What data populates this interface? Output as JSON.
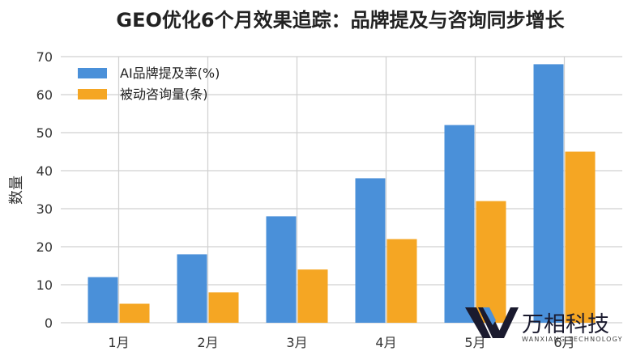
{
  "chart_data": {
    "type": "bar",
    "title": "GEO优化6个月效果追踪：品牌提及与咨询同步增长",
    "xlabel": "",
    "ylabel": "数量",
    "categories": [
      "1月",
      "2月",
      "3月",
      "4月",
      "5月",
      "6月"
    ],
    "series": [
      {
        "name": "AI品牌提及率(%)",
        "values": [
          12,
          18,
          28,
          38,
          52,
          68
        ],
        "color": "#4a90d9"
      },
      {
        "name": "被动咨询量(条)",
        "values": [
          5,
          8,
          14,
          22,
          32,
          45
        ],
        "color": "#f5a623"
      }
    ],
    "ylim": [
      0,
      70
    ],
    "yticks": [
      0,
      10,
      20,
      30,
      40,
      50,
      60,
      70
    ],
    "grid": true,
    "legend_position": "top-left"
  },
  "watermark": {
    "name": "万相科技",
    "subtitle": "WANXIANG TECHNOLOGY",
    "logo_icon": "wx-logo-icon"
  }
}
